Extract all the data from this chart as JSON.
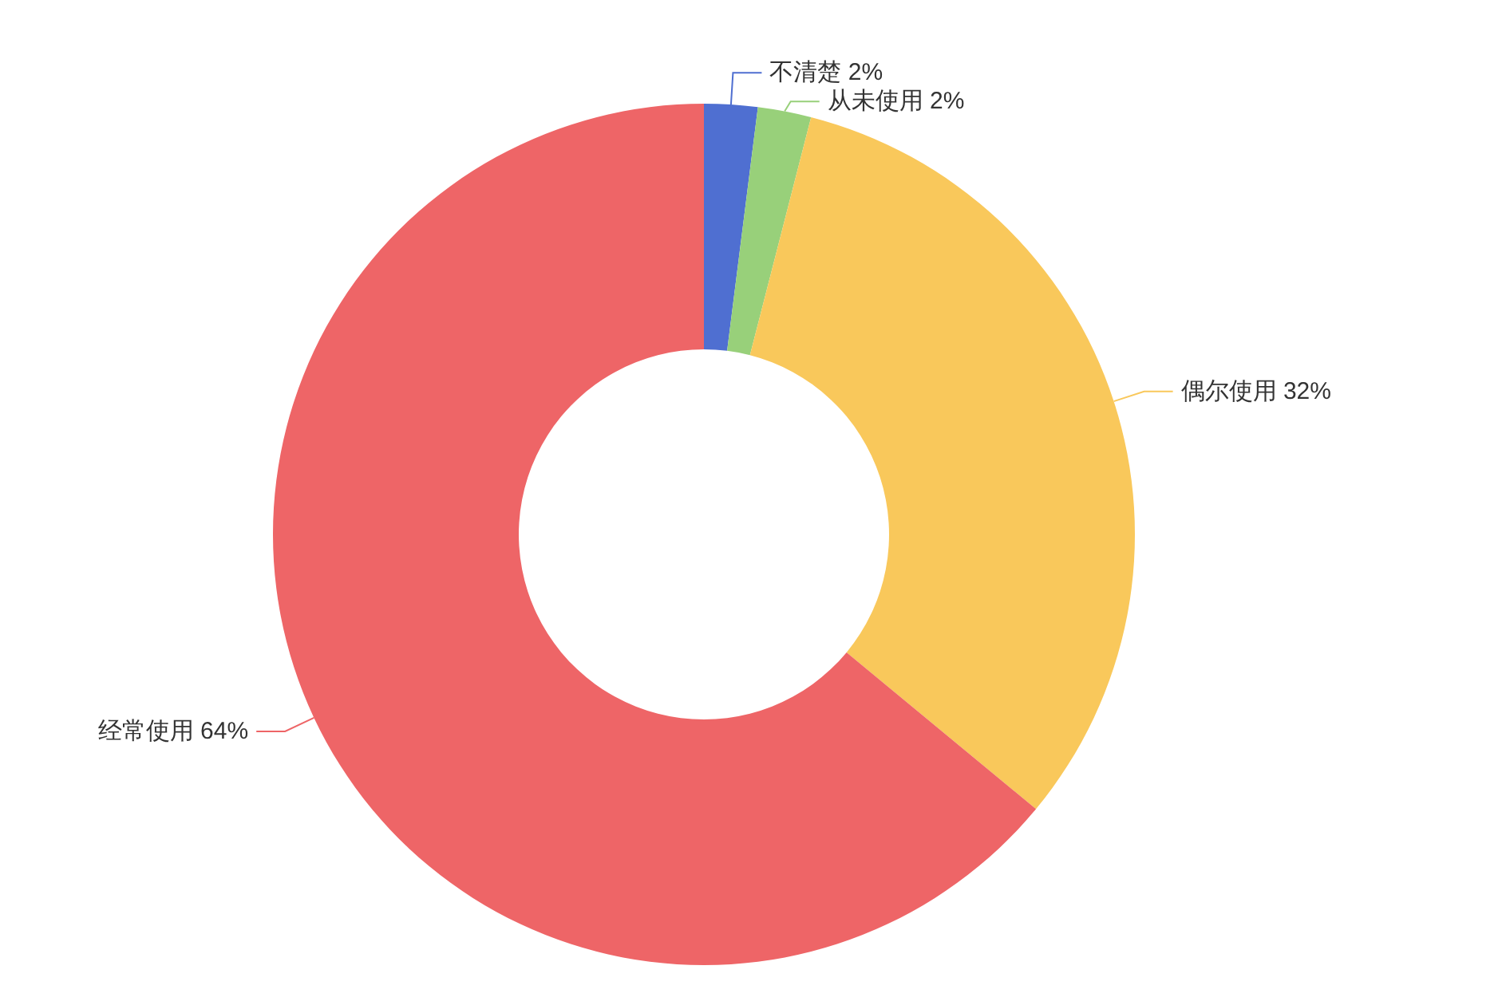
{
  "chart_data": {
    "type": "donut",
    "categories": [
      "不清楚",
      "从未使用",
      "偶尔使用",
      "经常使用"
    ],
    "values": [
      2,
      2,
      32,
      64
    ],
    "value_labels": [
      "2%",
      "2%",
      "32%",
      "64%"
    ],
    "colors": [
      "#4f6fd1",
      "#98d07a",
      "#f9c85b",
      "#ee6567"
    ]
  }
}
